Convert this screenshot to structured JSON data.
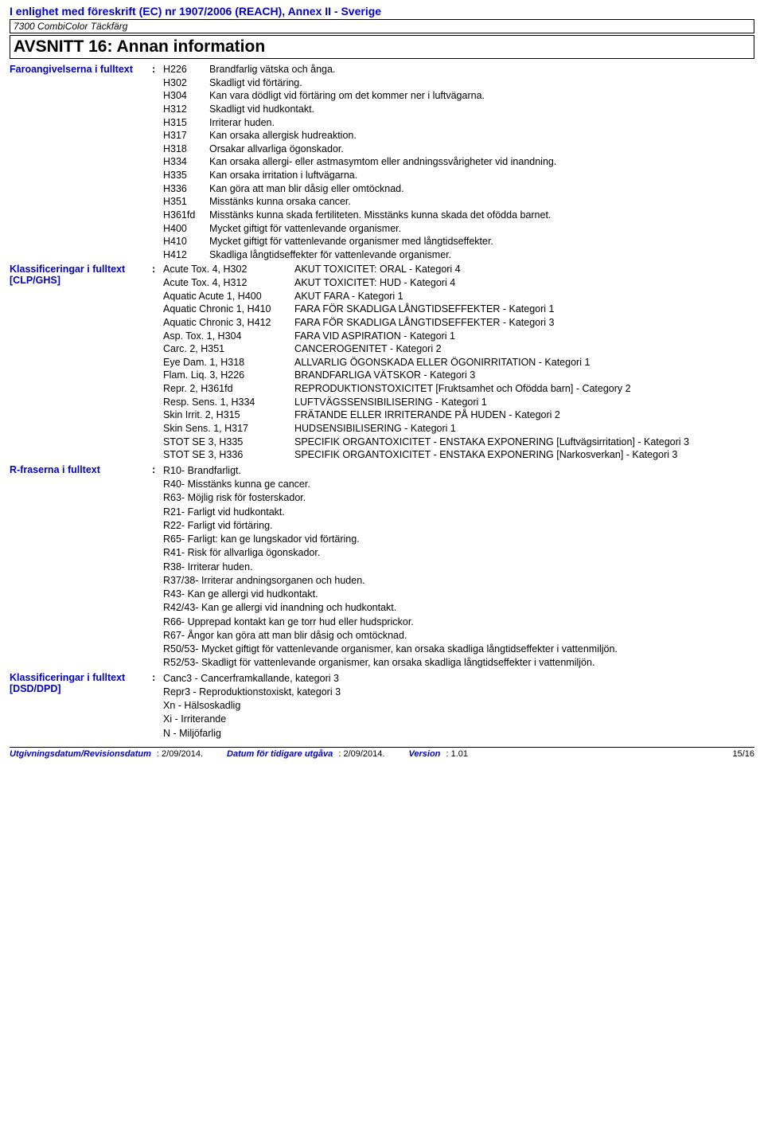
{
  "header": {
    "regulation": "I enlighet med föreskrift (EC) nr 1907/2006 (REACH), Annex II - Sverige",
    "product": "7300 CombiColor Täckfärg"
  },
  "section": {
    "title": "AVSNITT 16: Annan information"
  },
  "hazard": {
    "label": "Faroangivelserna i fulltext",
    "items": [
      {
        "code": "H226",
        "desc": "Brandfarlig vätska och ånga."
      },
      {
        "code": "H302",
        "desc": "Skadligt vid förtäring."
      },
      {
        "code": "H304",
        "desc": "Kan vara dödligt vid förtäring om det kommer ner i luftvägarna."
      },
      {
        "code": "H312",
        "desc": "Skadligt vid hudkontakt."
      },
      {
        "code": "H315",
        "desc": "Irriterar huden."
      },
      {
        "code": "H317",
        "desc": "Kan orsaka allergisk hudreaktion."
      },
      {
        "code": "H318",
        "desc": "Orsakar allvarliga ögonskador."
      },
      {
        "code": "H334",
        "desc": "Kan orsaka allergi- eller astmasymtom eller andningssvårigheter vid inandning."
      },
      {
        "code": "H335",
        "desc": "Kan orsaka irritation i luftvägarna."
      },
      {
        "code": "H336",
        "desc": "Kan göra att man blir dåsig eller omtöcknad."
      },
      {
        "code": "H351",
        "desc": "Misstänks kunna orsaka cancer."
      },
      {
        "code": "H361fd",
        "desc": "Misstänks kunna skada fertiliteten. Misstänks kunna skada det ofödda barnet."
      },
      {
        "code": "H400",
        "desc": "Mycket giftigt för vattenlevande organismer."
      },
      {
        "code": "H410",
        "desc": "Mycket giftigt för vattenlevande organismer med långtidseffekter."
      },
      {
        "code": "H412",
        "desc": "Skadliga långtidseffekter för vattenlevande organismer."
      }
    ]
  },
  "clp": {
    "label": "Klassificeringar i fulltext [CLP/GHS]",
    "items": [
      {
        "code": "Acute Tox. 4, H302",
        "desc": "AKUT TOXICITET: ORAL - Kategori 4"
      },
      {
        "code": "Acute Tox. 4, H312",
        "desc": "AKUT TOXICITET: HUD - Kategori 4"
      },
      {
        "code": "Aquatic Acute 1, H400",
        "desc": "AKUT FARA - Kategori 1"
      },
      {
        "code": "Aquatic Chronic 1, H410",
        "desc": "FARA FÖR SKADLIGA LÅNGTIDSEFFEKTER - Kategori 1"
      },
      {
        "code": "Aquatic Chronic 3, H412",
        "desc": "FARA FÖR SKADLIGA LÅNGTIDSEFFEKTER - Kategori 3"
      },
      {
        "code": "Asp. Tox. 1, H304",
        "desc": "FARA VID ASPIRATION - Kategori 1"
      },
      {
        "code": "Carc. 2, H351",
        "desc": "CANCEROGENITET - Kategori 2"
      },
      {
        "code": "Eye Dam. 1, H318",
        "desc": "ALLVARLIG ÖGONSKADA ELLER ÖGONIRRITATION - Kategori 1"
      },
      {
        "code": "Flam. Liq. 3, H226",
        "desc": "BRANDFARLIGA VÄTSKOR - Kategori 3"
      },
      {
        "code": "Repr. 2, H361fd",
        "desc": "REPRODUKTIONSTOXICITET [Fruktsamhet och Ofödda barn]  - Category 2"
      },
      {
        "code": "Resp. Sens. 1, H334",
        "desc": "LUFTVÄGSSENSIBILISERING - Kategori 1"
      },
      {
        "code": "Skin Irrit. 2, H315",
        "desc": "FRÄTANDE ELLER IRRITERANDE PÅ HUDEN - Kategori 2"
      },
      {
        "code": "Skin Sens. 1, H317",
        "desc": "HUDSENSIBILISERING - Kategori 1"
      },
      {
        "code": "STOT SE 3, H335",
        "desc": "SPECIFIK ORGANTOXICITET - ENSTAKA EXPONERING [Luftvägsirritation]  - Kategori 3"
      },
      {
        "code": "STOT SE 3, H336",
        "desc": "SPECIFIK ORGANTOXICITET - ENSTAKA EXPONERING [Narkosverkan]  - Kategori 3"
      }
    ]
  },
  "rphrases": {
    "label": "R-fraserna i fulltext",
    "lines": [
      "R10- Brandfarligt.",
      "R40- Misstänks kunna ge cancer.",
      "R63- Möjlig risk för fosterskador.",
      "R21- Farligt vid hudkontakt.",
      "R22- Farligt vid förtäring.",
      "R65- Farligt: kan ge lungskador vid förtäring.",
      "R41- Risk för allvarliga ögonskador.",
      "R38- Irriterar huden.",
      "R37/38- Irriterar andningsorganen och huden.",
      "R43- Kan ge allergi vid hudkontakt.",
      "R42/43- Kan ge allergi vid inandning och hudkontakt.",
      "R66- Upprepad kontakt kan ge torr hud eller hudsprickor.",
      "R67- Ångor kan göra att man blir dåsig och omtöcknad.",
      "R50/53- Mycket giftigt för vattenlevande organismer, kan orsaka skadliga långtidseffekter i vattenmiljön.",
      "R52/53- Skadligt för vattenlevande organismer, kan orsaka skadliga långtidseffekter i vattenmiljön."
    ]
  },
  "dsd": {
    "label": "Klassificeringar i fulltext [DSD/DPD]",
    "lines": [
      "Canc3 - Cancerframkallande, kategori 3",
      "Repr3 - Reproduktionstoxiskt, kategori 3",
      "Xn - Hälsoskadlig",
      "Xi - Irriterande",
      "N - Miljöfarlig"
    ]
  },
  "footer": {
    "rev_label": "Utgivningsdatum/Revisionsdatum",
    "rev_val": ": 2/09/2014.",
    "prev_label": "Datum för tidigare utgåva",
    "prev_val": ": 2/09/2014.",
    "ver_label": "Version",
    "ver_val": ": 1.01",
    "page": "15/16"
  }
}
